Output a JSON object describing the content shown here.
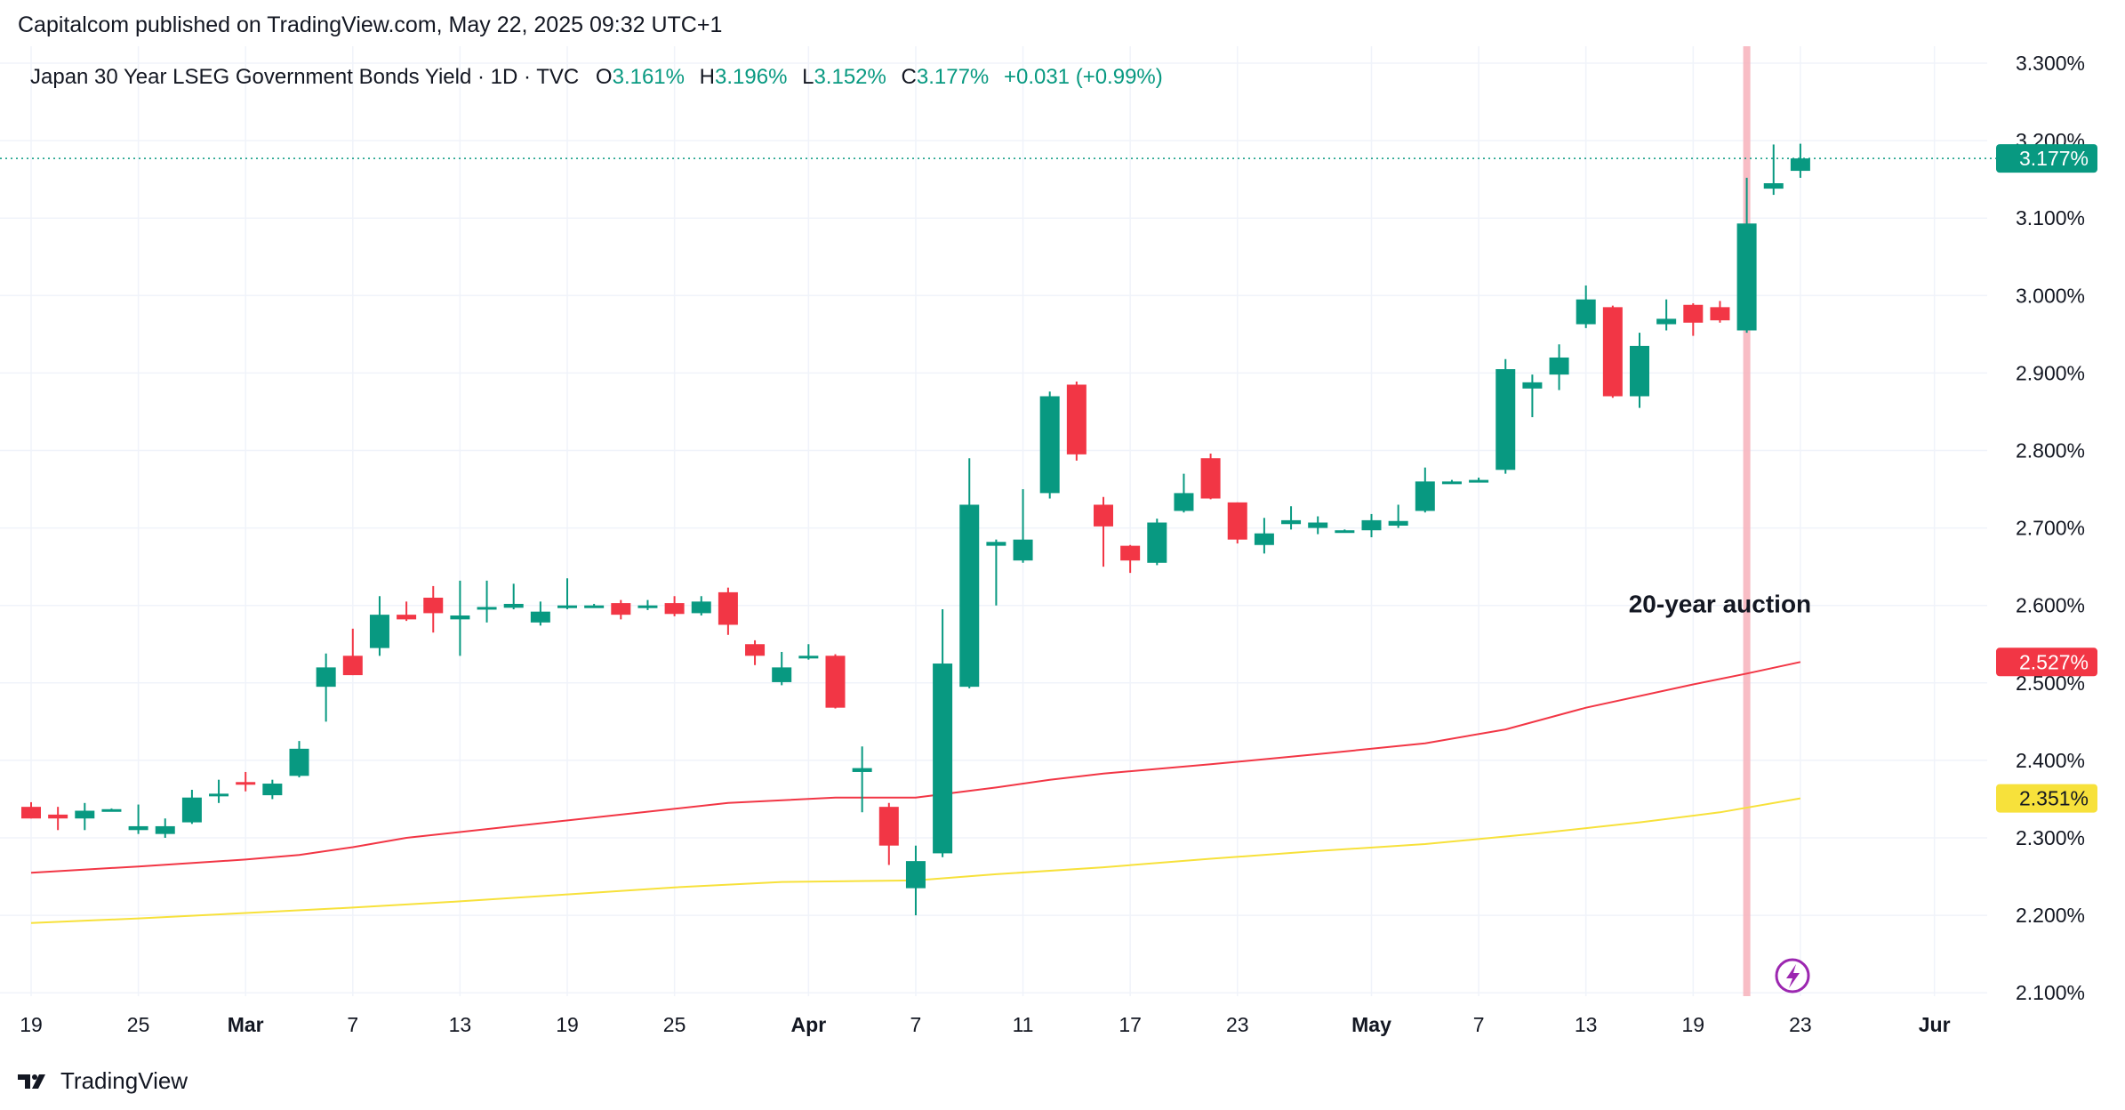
{
  "publisher_line": "Capitalcom published on TradingView.com, May 22, 2025 09:32 UTC+1",
  "footer": {
    "brand": "TradingView"
  },
  "legend": {
    "symbol": "Japan 30 Year LSEG Government Bonds Yield · 1D · TVC",
    "o_label": "O",
    "o_value": "3.161%",
    "h_label": "H",
    "h_value": "3.196%",
    "l_label": "L",
    "l_value": "3.152%",
    "c_label": "C",
    "c_value": "3.177%",
    "change": "+0.031 (+0.99%)"
  },
  "colors": {
    "up": "#089981",
    "down": "#f23645",
    "ma_red": "#f23645",
    "ma_yellow": "#f7e13b",
    "highlight": "#f7b2bb",
    "last_price": "#089981"
  },
  "chart_data": {
    "type": "candlestick",
    "y_unit": "%",
    "ylim": [
      2.1,
      3.3
    ],
    "y_ticks": [
      "3.300%",
      "3.200%",
      "3.100%",
      "3.000%",
      "2.900%",
      "2.800%",
      "2.700%",
      "2.600%",
      "2.500%",
      "2.400%",
      "2.300%",
      "2.200%",
      "2.100%"
    ],
    "y_tick_values": [
      3.3,
      3.2,
      3.1,
      3.0,
      2.9,
      2.8,
      2.7,
      2.6,
      2.5,
      2.4,
      2.3,
      2.2,
      2.1
    ],
    "x_ticks": [
      {
        "label": "19",
        "idx": 0,
        "bold": false
      },
      {
        "label": "25",
        "idx": 4,
        "bold": false
      },
      {
        "label": "Mar",
        "idx": 8,
        "bold": true
      },
      {
        "label": "7",
        "idx": 12,
        "bold": false
      },
      {
        "label": "13",
        "idx": 16,
        "bold": false
      },
      {
        "label": "19",
        "idx": 20,
        "bold": false
      },
      {
        "label": "25",
        "idx": 24,
        "bold": false
      },
      {
        "label": "Apr",
        "idx": 29,
        "bold": true
      },
      {
        "label": "7",
        "idx": 33,
        "bold": false
      },
      {
        "label": "11",
        "idx": 37,
        "bold": false
      },
      {
        "label": "17",
        "idx": 41,
        "bold": false
      },
      {
        "label": "23",
        "idx": 45,
        "bold": false
      },
      {
        "label": "May",
        "idx": 50,
        "bold": true
      },
      {
        "label": "7",
        "idx": 54,
        "bold": false
      },
      {
        "label": "13",
        "idx": 58,
        "bold": false
      },
      {
        "label": "19",
        "idx": 62,
        "bold": false
      },
      {
        "label": "23",
        "idx": 66,
        "bold": false
      },
      {
        "label": "Jur",
        "idx": 71,
        "bold": true
      }
    ],
    "candles": [
      {
        "i": 0,
        "o": 2.34,
        "h": 2.346,
        "l": 2.325,
        "c": 2.325
      },
      {
        "i": 1,
        "o": 2.33,
        "h": 2.34,
        "l": 2.31,
        "c": 2.325
      },
      {
        "i": 2,
        "o": 2.325,
        "h": 2.345,
        "l": 2.31,
        "c": 2.335
      },
      {
        "i": 3,
        "o": 2.337,
        "h": 2.338,
        "l": 2.337,
        "c": 2.337
      },
      {
        "i": 4,
        "o": 2.31,
        "h": 2.343,
        "l": 2.305,
        "c": 2.315
      },
      {
        "i": 5,
        "o": 2.305,
        "h": 2.325,
        "l": 2.3,
        "c": 2.315
      },
      {
        "i": 6,
        "o": 2.32,
        "h": 2.362,
        "l": 2.318,
        "c": 2.352
      },
      {
        "i": 7,
        "o": 2.355,
        "h": 2.375,
        "l": 2.345,
        "c": 2.357
      },
      {
        "i": 8,
        "o": 2.372,
        "h": 2.385,
        "l": 2.36,
        "c": 2.37
      },
      {
        "i": 9,
        "o": 2.355,
        "h": 2.375,
        "l": 2.35,
        "c": 2.37
      },
      {
        "i": 10,
        "o": 2.38,
        "h": 2.425,
        "l": 2.378,
        "c": 2.415
      },
      {
        "i": 11,
        "o": 2.495,
        "h": 2.538,
        "l": 2.45,
        "c": 2.52
      },
      {
        "i": 12,
        "o": 2.535,
        "h": 2.57,
        "l": 2.51,
        "c": 2.51
      },
      {
        "i": 13,
        "o": 2.545,
        "h": 2.612,
        "l": 2.535,
        "c": 2.588
      },
      {
        "i": 14,
        "o": 2.588,
        "h": 2.605,
        "l": 2.58,
        "c": 2.582
      },
      {
        "i": 15,
        "o": 2.61,
        "h": 2.625,
        "l": 2.565,
        "c": 2.59
      },
      {
        "i": 16,
        "o": 2.582,
        "h": 2.632,
        "l": 2.535,
        "c": 2.587
      },
      {
        "i": 17,
        "o": 2.597,
        "h": 2.632,
        "l": 2.578,
        "c": 2.598
      },
      {
        "i": 18,
        "o": 2.597,
        "h": 2.628,
        "l": 2.595,
        "c": 2.602
      },
      {
        "i": 19,
        "o": 2.578,
        "h": 2.605,
        "l": 2.574,
        "c": 2.592
      },
      {
        "i": 20,
        "o": 2.597,
        "h": 2.635,
        "l": 2.595,
        "c": 2.6
      },
      {
        "i": 21,
        "o": 2.6,
        "h": 2.602,
        "l": 2.598,
        "c": 2.6
      },
      {
        "i": 22,
        "o": 2.603,
        "h": 2.607,
        "l": 2.582,
        "c": 2.588
      },
      {
        "i": 23,
        "o": 2.597,
        "h": 2.607,
        "l": 2.594,
        "c": 2.6
      },
      {
        "i": 24,
        "o": 2.603,
        "h": 2.612,
        "l": 2.586,
        "c": 2.589
      },
      {
        "i": 25,
        "o": 2.59,
        "h": 2.612,
        "l": 2.587,
        "c": 2.605
      },
      {
        "i": 26,
        "o": 2.617,
        "h": 2.623,
        "l": 2.562,
        "c": 2.575
      },
      {
        "i": 27,
        "o": 2.55,
        "h": 2.555,
        "l": 2.523,
        "c": 2.535
      },
      {
        "i": 28,
        "o": 2.501,
        "h": 2.54,
        "l": 2.497,
        "c": 2.52
      },
      {
        "i": 29,
        "o": 2.535,
        "h": 2.55,
        "l": 2.53,
        "c": 2.535
      },
      {
        "i": 30,
        "o": 2.535,
        "h": 2.537,
        "l": 2.467,
        "c": 2.468
      },
      {
        "i": 31,
        "o": 2.385,
        "h": 2.418,
        "l": 2.333,
        "c": 2.39
      },
      {
        "i": 32,
        "o": 2.34,
        "h": 2.345,
        "l": 2.265,
        "c": 2.29
      },
      {
        "i": 33,
        "o": 2.235,
        "h": 2.29,
        "l": 2.2,
        "c": 2.27
      },
      {
        "i": 34,
        "o": 2.28,
        "h": 2.595,
        "l": 2.275,
        "c": 2.525
      },
      {
        "i": 35,
        "o": 2.495,
        "h": 2.79,
        "l": 2.493,
        "c": 2.73
      },
      {
        "i": 36,
        "o": 2.677,
        "h": 2.685,
        "l": 2.6,
        "c": 2.682
      },
      {
        "i": 37,
        "o": 2.658,
        "h": 2.75,
        "l": 2.655,
        "c": 2.685
      },
      {
        "i": 38,
        "o": 2.745,
        "h": 2.876,
        "l": 2.738,
        "c": 2.87
      },
      {
        "i": 39,
        "o": 2.885,
        "h": 2.889,
        "l": 2.787,
        "c": 2.795
      },
      {
        "i": 40,
        "o": 2.73,
        "h": 2.74,
        "l": 2.65,
        "c": 2.702
      },
      {
        "i": 41,
        "o": 2.677,
        "h": 2.678,
        "l": 2.642,
        "c": 2.658
      },
      {
        "i": 42,
        "o": 2.655,
        "h": 2.712,
        "l": 2.652,
        "c": 2.707
      },
      {
        "i": 43,
        "o": 2.722,
        "h": 2.77,
        "l": 2.72,
        "c": 2.745
      },
      {
        "i": 44,
        "o": 2.79,
        "h": 2.796,
        "l": 2.737,
        "c": 2.738
      },
      {
        "i": 45,
        "o": 2.733,
        "h": 2.733,
        "l": 2.68,
        "c": 2.685
      },
      {
        "i": 46,
        "o": 2.678,
        "h": 2.713,
        "l": 2.667,
        "c": 2.693
      },
      {
        "i": 47,
        "o": 2.705,
        "h": 2.728,
        "l": 2.698,
        "c": 2.71
      },
      {
        "i": 48,
        "o": 2.7,
        "h": 2.715,
        "l": 2.692,
        "c": 2.707
      },
      {
        "i": 49,
        "o": 2.697,
        "h": 2.698,
        "l": 2.696,
        "c": 2.697
      },
      {
        "i": 50,
        "o": 2.697,
        "h": 2.718,
        "l": 2.688,
        "c": 2.71
      },
      {
        "i": 51,
        "o": 2.703,
        "h": 2.73,
        "l": 2.7,
        "c": 2.709
      },
      {
        "i": 52,
        "o": 2.722,
        "h": 2.778,
        "l": 2.72,
        "c": 2.76
      },
      {
        "i": 53,
        "o": 2.76,
        "h": 2.762,
        "l": 2.758,
        "c": 2.76
      },
      {
        "i": 54,
        "o": 2.762,
        "h": 2.765,
        "l": 2.76,
        "c": 2.762
      },
      {
        "i": 55,
        "o": 2.775,
        "h": 2.918,
        "l": 2.77,
        "c": 2.905
      },
      {
        "i": 56,
        "o": 2.88,
        "h": 2.898,
        "l": 2.843,
        "c": 2.888
      },
      {
        "i": 57,
        "o": 2.898,
        "h": 2.937,
        "l": 2.878,
        "c": 2.92
      },
      {
        "i": 58,
        "o": 2.963,
        "h": 3.013,
        "l": 2.958,
        "c": 2.995
      },
      {
        "i": 59,
        "o": 2.985,
        "h": 2.987,
        "l": 2.868,
        "c": 2.87
      },
      {
        "i": 60,
        "o": 2.87,
        "h": 2.952,
        "l": 2.855,
        "c": 2.935
      },
      {
        "i": 61,
        "o": 2.963,
        "h": 2.995,
        "l": 2.955,
        "c": 2.97
      },
      {
        "i": 62,
        "o": 2.988,
        "h": 2.99,
        "l": 2.948,
        "c": 2.965
      },
      {
        "i": 63,
        "o": 2.985,
        "h": 2.993,
        "l": 2.965,
        "c": 2.968
      },
      {
        "i": 64,
        "o": 2.955,
        "h": 3.152,
        "l": 2.952,
        "c": 3.093
      },
      {
        "i": 65,
        "o": 3.138,
        "h": 3.195,
        "l": 3.13,
        "c": 3.145
      },
      {
        "i": 66,
        "o": 3.161,
        "h": 3.196,
        "l": 3.152,
        "c": 3.177
      }
    ],
    "series": [
      {
        "name": "",
        "color": "#f23645",
        "points": [
          [
            0,
            2.255
          ],
          [
            4,
            2.263
          ],
          [
            8,
            2.272
          ],
          [
            10,
            2.278
          ],
          [
            12,
            2.288
          ],
          [
            14,
            2.3
          ],
          [
            18,
            2.315
          ],
          [
            22,
            2.33
          ],
          [
            26,
            2.345
          ],
          [
            30,
            2.352
          ],
          [
            33,
            2.352
          ],
          [
            36,
            2.365
          ],
          [
            38,
            2.375
          ],
          [
            40,
            2.383
          ],
          [
            44,
            2.395
          ],
          [
            48,
            2.408
          ],
          [
            52,
            2.422
          ],
          [
            55,
            2.44
          ],
          [
            58,
            2.468
          ],
          [
            62,
            2.498
          ],
          [
            64,
            2.512
          ],
          [
            66,
            2.527
          ]
        ]
      },
      {
        "name": "",
        "color": "#f7e13b",
        "points": [
          [
            0,
            2.19
          ],
          [
            4,
            2.196
          ],
          [
            8,
            2.203
          ],
          [
            12,
            2.21
          ],
          [
            16,
            2.218
          ],
          [
            20,
            2.227
          ],
          [
            24,
            2.236
          ],
          [
            28,
            2.243
          ],
          [
            33,
            2.245
          ],
          [
            36,
            2.253
          ],
          [
            40,
            2.262
          ],
          [
            44,
            2.273
          ],
          [
            48,
            2.283
          ],
          [
            52,
            2.292
          ],
          [
            56,
            2.305
          ],
          [
            60,
            2.32
          ],
          [
            63,
            2.333
          ],
          [
            66,
            2.351
          ]
        ]
      }
    ],
    "last_price_label": "3.177%",
    "ma_labels": [
      {
        "text": "2.527%",
        "value": 2.527,
        "bg": "#f23645",
        "fg": "#ffffff"
      },
      {
        "text": "2.351%",
        "value": 2.351,
        "bg": "#f7e13b",
        "fg": "#131722"
      }
    ],
    "highlight_idx": 64,
    "annotation": {
      "text": "20-year auction",
      "idx": 63,
      "value": 2.6
    }
  }
}
